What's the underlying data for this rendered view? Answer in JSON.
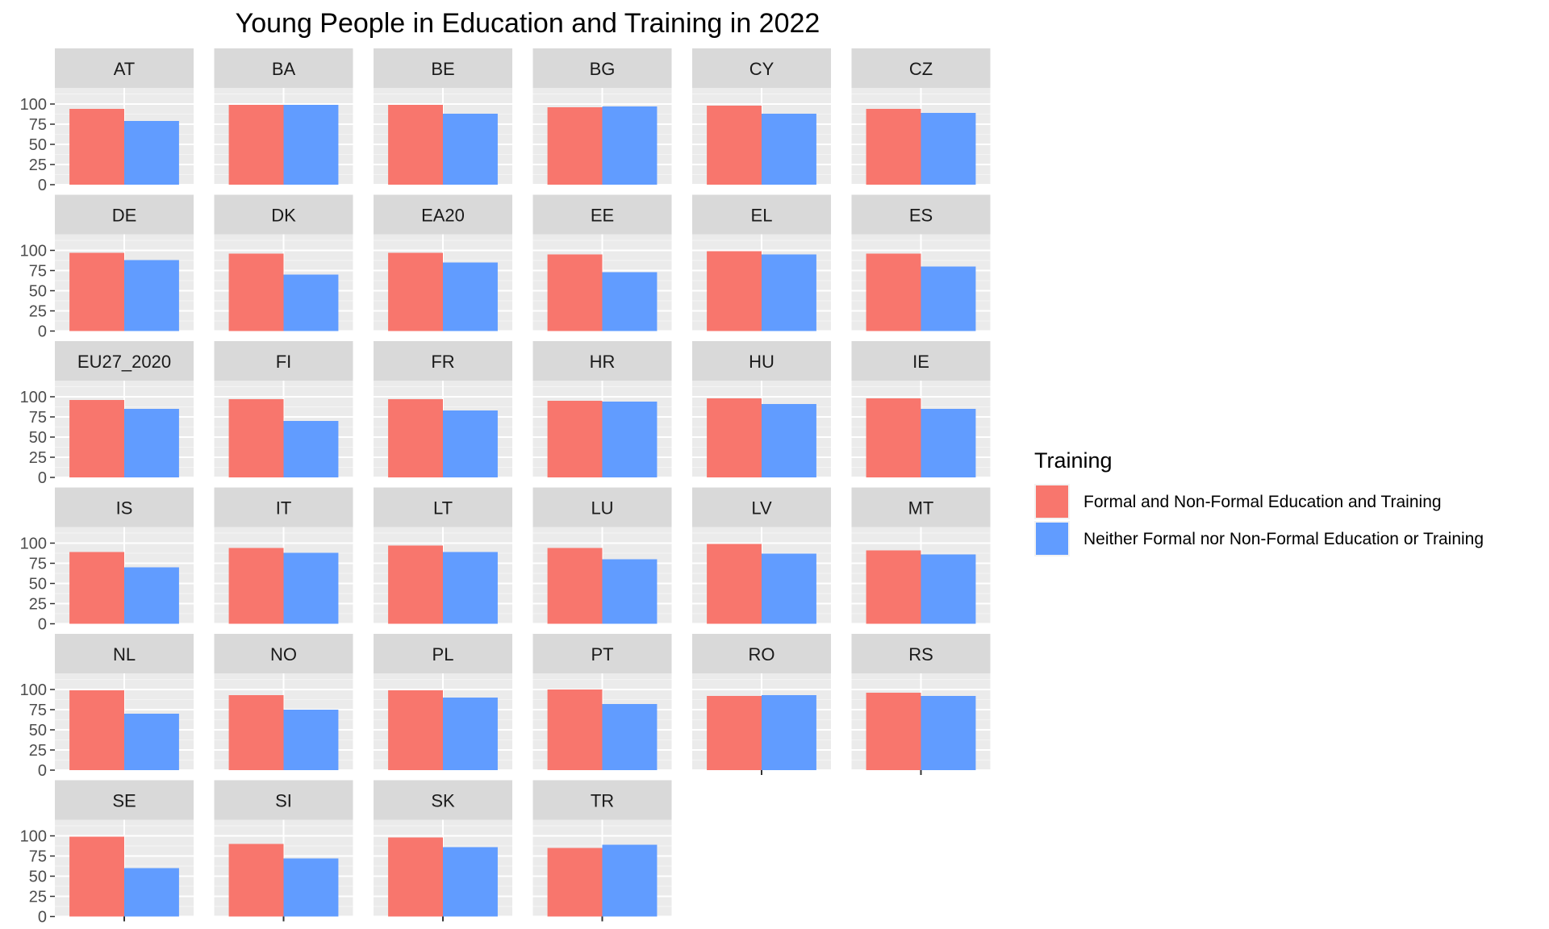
{
  "chart_data": {
    "type": "bar",
    "title": "Young People in Education and Training in 2022",
    "facet_grid": "6 columns, wrapped",
    "ylim": [
      0,
      120
    ],
    "y_ticks": [
      "0",
      "25",
      "50",
      "75",
      "100"
    ],
    "x_ticks": [
      "",
      ""
    ],
    "legend": {
      "title": "Training",
      "position": "right"
    },
    "series": [
      {
        "name": "Formal and Non-Formal Education and Training",
        "color": "#F8766D"
      },
      {
        "name": "Neither Formal nor Non-Formal Education or Training",
        "color": "#619CFF"
      }
    ],
    "facets": [
      {
        "label": "AT",
        "values": [
          94,
          79
        ]
      },
      {
        "label": "BA",
        "values": [
          99,
          99
        ]
      },
      {
        "label": "BE",
        "values": [
          99,
          88
        ]
      },
      {
        "label": "BG",
        "values": [
          96,
          97
        ]
      },
      {
        "label": "CY",
        "values": [
          98,
          88
        ]
      },
      {
        "label": "CZ",
        "values": [
          94,
          89
        ]
      },
      {
        "label": "DE",
        "values": [
          97,
          88
        ]
      },
      {
        "label": "DK",
        "values": [
          96,
          70
        ]
      },
      {
        "label": "EA20",
        "values": [
          97,
          85
        ]
      },
      {
        "label": "EE",
        "values": [
          95,
          73
        ]
      },
      {
        "label": "EL",
        "values": [
          99,
          95
        ]
      },
      {
        "label": "ES",
        "values": [
          96,
          80
        ]
      },
      {
        "label": "EU27_2020",
        "values": [
          96,
          85
        ]
      },
      {
        "label": "FI",
        "values": [
          97,
          70
        ]
      },
      {
        "label": "FR",
        "values": [
          97,
          83
        ]
      },
      {
        "label": "HR",
        "values": [
          95,
          94
        ]
      },
      {
        "label": "HU",
        "values": [
          98,
          91
        ]
      },
      {
        "label": "IE",
        "values": [
          98,
          85
        ]
      },
      {
        "label": "IS",
        "values": [
          89,
          70
        ]
      },
      {
        "label": "IT",
        "values": [
          94,
          88
        ]
      },
      {
        "label": "LT",
        "values": [
          97,
          89
        ]
      },
      {
        "label": "LU",
        "values": [
          94,
          80
        ]
      },
      {
        "label": "LV",
        "values": [
          99,
          87
        ]
      },
      {
        "label": "MT",
        "values": [
          91,
          86
        ]
      },
      {
        "label": "NL",
        "values": [
          99,
          70
        ]
      },
      {
        "label": "NO",
        "values": [
          93,
          75
        ]
      },
      {
        "label": "PL",
        "values": [
          99,
          90
        ]
      },
      {
        "label": "PT",
        "values": [
          100,
          82
        ]
      },
      {
        "label": "RO",
        "values": [
          92,
          93
        ]
      },
      {
        "label": "RS",
        "values": [
          96,
          92
        ]
      },
      {
        "label": "SE",
        "values": [
          99,
          60
        ]
      },
      {
        "label": "SI",
        "values": [
          90,
          72
        ]
      },
      {
        "label": "SK",
        "values": [
          98,
          86
        ]
      },
      {
        "label": "TR",
        "values": [
          85,
          89
        ]
      }
    ]
  }
}
